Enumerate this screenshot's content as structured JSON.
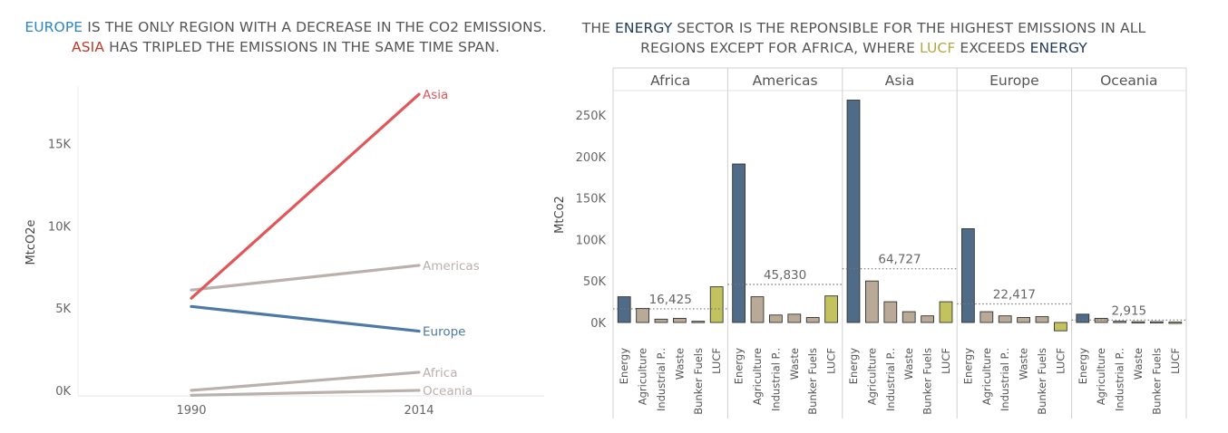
{
  "left_title": {
    "w1": "EUROPE",
    "w2": " IS THE ONLY REGION WITH A DECREASE IN THE CO2 EMISSIONS.  ",
    "w3": "ASIA",
    "w4": " HAS TRIPLED THE EMISSIONS IN THE SAME TIME SPAN.",
    "c_europe": "#2e86c1",
    "c_asia": "#c0392b"
  },
  "right_title": {
    "w1": "THE ",
    "w2": "ENERGY",
    "w3": " SECTOR IS THE REPONSIBLE FOR THE HIGHEST EMISSIONS IN ALL REGIONS EXCEPT FOR AFRICA, WHERE ",
    "w4": "LUCF",
    "w5": " EXCEEDS ",
    "w6": "ENERGY",
    "c_energy": "#1f3a5a",
    "c_lucf": "#b5a642"
  },
  "chart_data": [
    {
      "type": "line",
      "ylabel": "MtcO2e",
      "x": [
        "1990",
        "2014"
      ],
      "yticks": [
        "0K",
        "5K",
        "10K",
        "15K"
      ],
      "ytick_values": [
        0,
        5000,
        10000,
        15000
      ],
      "ylim": [
        -500,
        18500
      ],
      "series": [
        {
          "name": "Asia",
          "values": [
            5600,
            18000
          ],
          "color": "#e15759"
        },
        {
          "name": "Americas",
          "values": [
            6100,
            7600
          ],
          "color": "#bab0ac"
        },
        {
          "name": "Europe",
          "values": [
            5100,
            3600
          ],
          "color": "#4e79a7"
        },
        {
          "name": "Africa",
          "values": [
            0,
            1100
          ],
          "color": "#bab0ac"
        },
        {
          "name": "Oceania",
          "values": [
            -300,
            0
          ],
          "color": "#bab0ac"
        }
      ]
    },
    {
      "type": "bar",
      "ylabel": "MtCo2",
      "regions": [
        "Africa",
        "Americas",
        "Asia",
        "Europe",
        "Oceania"
      ],
      "categories": [
        "Energy",
        "Agriculture",
        "Industrial P..",
        "Waste",
        "Bunker Fuels",
        "LUCF"
      ],
      "colors": {
        "Energy": "#4f6b87",
        "Agriculture": "#b9aa97",
        "Industrial P..": "#b9aa97",
        "Waste": "#b9aa97",
        "Bunker Fuels": "#b9aa97",
        "LUCF": "#c2c25e"
      },
      "yticks": [
        "0K",
        "50K",
        "100K",
        "150K",
        "200K",
        "250K"
      ],
      "ytick_values": [
        0,
        50000,
        100000,
        150000,
        200000,
        250000
      ],
      "ylim": [
        -15000,
        270000
      ],
      "values": {
        "Africa": [
          31000,
          17000,
          4000,
          5000,
          1500,
          43000
        ],
        "Americas": [
          191000,
          31000,
          9000,
          10000,
          6000,
          32000
        ],
        "Asia": [
          268000,
          50000,
          25000,
          13000,
          8000,
          25000
        ],
        "Europe": [
          113000,
          13000,
          8000,
          6000,
          7000,
          -10000
        ],
        "Oceania": [
          10000,
          5000,
          1500,
          1000,
          1000,
          500
        ]
      },
      "averages": {
        "Africa": 16425,
        "Americas": 45830,
        "Asia": 64727,
        "Europe": 22417,
        "Oceania": 2915
      },
      "average_labels": {
        "Africa": "16,425",
        "Americas": "45,830",
        "Asia": "64,727",
        "Europe": "22,417",
        "Oceania": "2,915"
      }
    }
  ]
}
